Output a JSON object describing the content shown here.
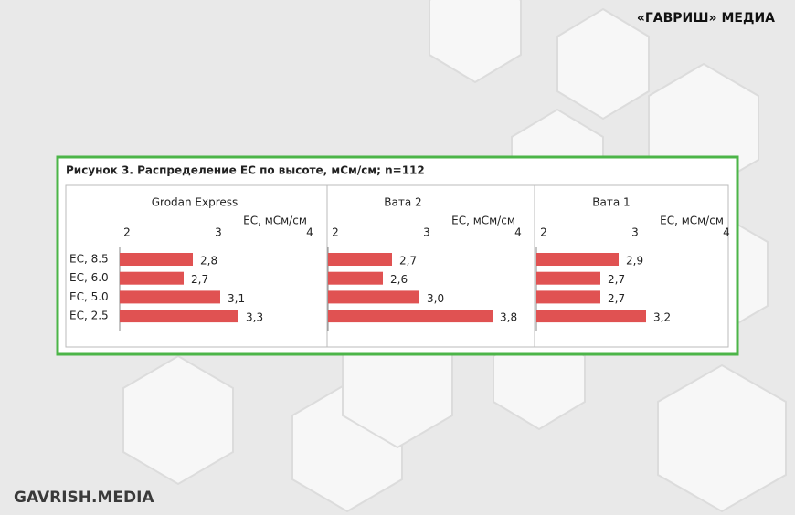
{
  "brand": "«ГАВРИШ» МЕДИА",
  "footer": "GAVRISH.MEDIA",
  "figure_title": "Рисунок 3. Распределение ЕС по высоте, мСм/см; n=112",
  "chart_data": [
    {
      "type": "bar",
      "orientation": "horizontal",
      "title": "Grodan Express",
      "x_label": "ЕС, мСм/см",
      "categories": [
        "EC, 8.5",
        "EC, 6.0",
        "EC, 5.0",
        "EC, 2.5"
      ],
      "values": [
        2.8,
        2.7,
        3.1,
        3.3
      ],
      "value_labels": [
        "2,8",
        "2,7",
        "3,1",
        "3,3"
      ],
      "color": "#e05252",
      "xlim": [
        2,
        4
      ],
      "xticks": [
        2,
        3,
        4
      ]
    },
    {
      "type": "bar",
      "orientation": "horizontal",
      "title": "Вата 2",
      "x_label": "ЕС, мСм/см",
      "categories": [
        null,
        null,
        null,
        null
      ],
      "values": [
        2.7,
        2.6,
        3.0,
        3.8
      ],
      "value_labels": [
        "2,7",
        "2,6",
        "3,0",
        "3,8"
      ],
      "color": "#e05252",
      "xlim": [
        2,
        4
      ],
      "xticks": [
        2,
        3,
        4
      ]
    },
    {
      "type": "bar",
      "orientation": "horizontal",
      "title": "Вата 1",
      "x_label": "ЕС, мСм/см",
      "categories": [
        null,
        null,
        null,
        null
      ],
      "values": [
        2.9,
        2.7,
        2.7,
        3.2
      ],
      "value_labels": [
        "2,9",
        "2,7",
        "2,7",
        "3,2"
      ],
      "color": "#e05252",
      "xlim": [
        2,
        4
      ],
      "xticks": [
        2,
        3,
        4
      ]
    }
  ]
}
